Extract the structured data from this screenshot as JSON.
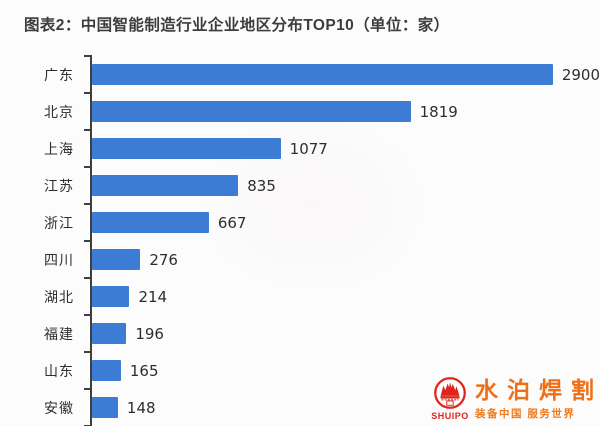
{
  "title": "图表2：中国智能制造行业企业地区分布TOP10（单位：家）",
  "chart_data": {
    "type": "bar",
    "orientation": "horizontal",
    "title": "图表2：中国智能制造行业企业地区分布TOP10（单位：家）",
    "unit_label": "单位：家",
    "categories": [
      "广东",
      "北京",
      "上海",
      "江苏",
      "浙江",
      "四川",
      "湖北",
      "福建",
      "山东",
      "安徽"
    ],
    "values": [
      2900,
      1819,
      1077,
      835,
      667,
      276,
      214,
      196,
      165,
      148
    ],
    "xlim": [
      0,
      2900
    ],
    "grid": false,
    "value_labels": true,
    "bar_color": "#3c7cd4",
    "axis_color": "#3f3f3f",
    "label_color": "#2f2f2f",
    "value_color": "#2e2e2e"
  },
  "watermark": {
    "brand_cn": "水泊焊割",
    "brand_en": "SHUIPO",
    "tagline": "装备中国 服务世界",
    "logo_red": "#e0251c",
    "text_orange": "#ef6f16"
  }
}
